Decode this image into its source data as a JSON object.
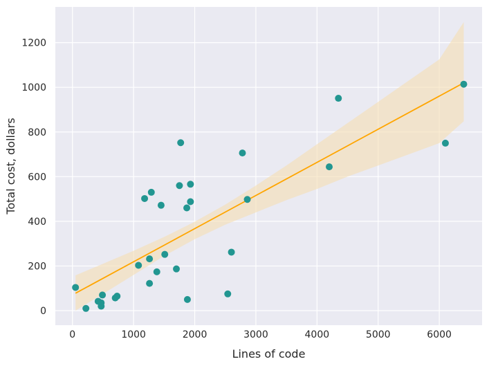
{
  "chart_data": {
    "type": "scatter",
    "title": "",
    "xlabel": "Lines of code",
    "ylabel": "Total cost, dollars",
    "xlim": [
      -280,
      6700
    ],
    "ylim": [
      -65,
      1360
    ],
    "xticks": [
      0,
      1000,
      2000,
      3000,
      4000,
      5000,
      6000
    ],
    "yticks": [
      0,
      200,
      400,
      600,
      800,
      1000,
      1200
    ],
    "grid": true,
    "colors": {
      "background": "#eaeaf2",
      "grid": "#ffffff",
      "points": "#229691",
      "regression_line": "#ffa500",
      "confidence_band": "#f5deb3"
    },
    "points": [
      {
        "x": 50,
        "y": 104
      },
      {
        "x": 220,
        "y": 10
      },
      {
        "x": 420,
        "y": 42
      },
      {
        "x": 470,
        "y": 35
      },
      {
        "x": 470,
        "y": 20
      },
      {
        "x": 490,
        "y": 70
      },
      {
        "x": 700,
        "y": 57
      },
      {
        "x": 730,
        "y": 65
      },
      {
        "x": 1080,
        "y": 203
      },
      {
        "x": 1180,
        "y": 502
      },
      {
        "x": 1260,
        "y": 232
      },
      {
        "x": 1260,
        "y": 122
      },
      {
        "x": 1290,
        "y": 530
      },
      {
        "x": 1380,
        "y": 174
      },
      {
        "x": 1450,
        "y": 472
      },
      {
        "x": 1510,
        "y": 252
      },
      {
        "x": 1700,
        "y": 187
      },
      {
        "x": 1750,
        "y": 560
      },
      {
        "x": 1770,
        "y": 752
      },
      {
        "x": 1870,
        "y": 460
      },
      {
        "x": 1880,
        "y": 50
      },
      {
        "x": 1930,
        "y": 488
      },
      {
        "x": 1930,
        "y": 566
      },
      {
        "x": 2540,
        "y": 75
      },
      {
        "x": 2600,
        "y": 262
      },
      {
        "x": 2780,
        "y": 706
      },
      {
        "x": 2860,
        "y": 498
      },
      {
        "x": 4200,
        "y": 644
      },
      {
        "x": 4350,
        "y": 951
      },
      {
        "x": 6100,
        "y": 750
      },
      {
        "x": 6400,
        "y": 1014
      }
    ],
    "regression_line": {
      "x": [
        50,
        6400
      ],
      "y": [
        78,
        1020
      ]
    },
    "confidence_band": [
      {
        "x": 50,
        "lower": 0,
        "upper": 158
      },
      {
        "x": 500,
        "lower": 75,
        "upper": 210
      },
      {
        "x": 1000,
        "lower": 160,
        "upper": 268
      },
      {
        "x": 1500,
        "lower": 245,
        "upper": 330
      },
      {
        "x": 2000,
        "lower": 320,
        "upper": 398
      },
      {
        "x": 2500,
        "lower": 385,
        "upper": 475
      },
      {
        "x": 3000,
        "lower": 440,
        "upper": 560
      },
      {
        "x": 3500,
        "lower": 495,
        "upper": 650
      },
      {
        "x": 4000,
        "lower": 545,
        "upper": 745
      },
      {
        "x": 4500,
        "lower": 600,
        "upper": 840
      },
      {
        "x": 5000,
        "lower": 650,
        "upper": 935
      },
      {
        "x": 5500,
        "lower": 700,
        "upper": 1030
      },
      {
        "x": 6000,
        "lower": 750,
        "upper": 1125
      },
      {
        "x": 6400,
        "lower": 848,
        "upper": 1292
      }
    ]
  }
}
